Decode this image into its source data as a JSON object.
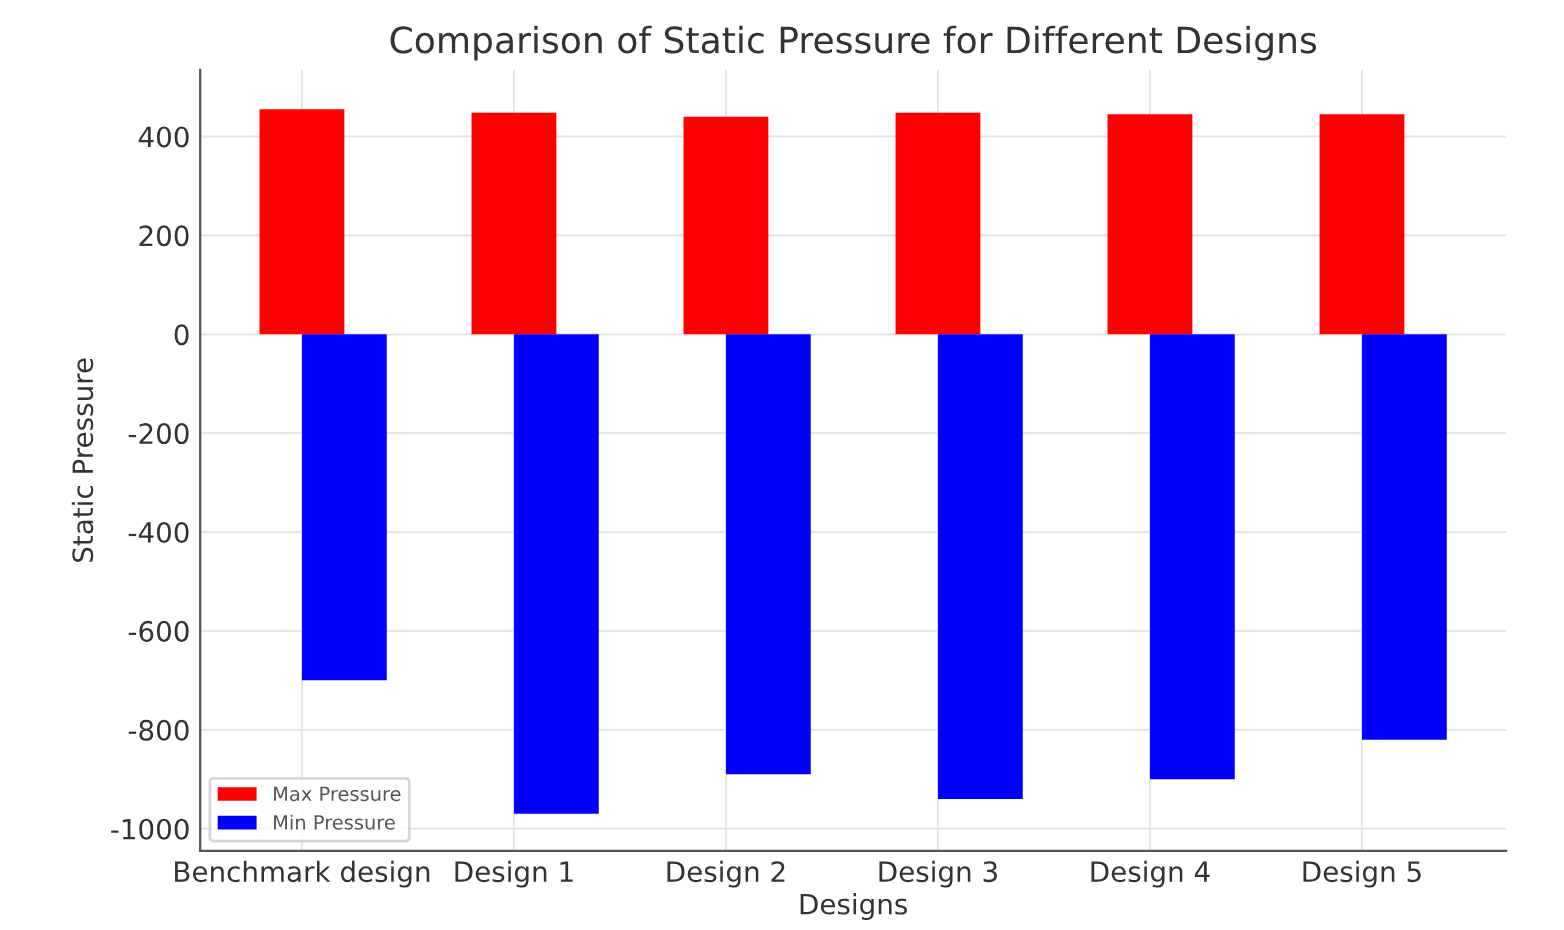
{
  "chart_data": {
    "type": "bar",
    "title": "Comparison of Static Pressure for Different Designs",
    "xlabel": "Designs",
    "ylabel": "Static Pressure",
    "categories": [
      "Benchmark design",
      "Design 1",
      "Design 2",
      "Design 3",
      "Design 4",
      "Design 5"
    ],
    "series": [
      {
        "name": "Max Pressure",
        "color": "#ff0000",
        "values": [
          455,
          448,
          440,
          448,
          445,
          445
        ]
      },
      {
        "name": "Min Pressure",
        "color": "#0000ff",
        "values": [
          -700,
          -970,
          -890,
          -940,
          -900,
          -820
        ]
      }
    ],
    "ylim": [
      -1045,
      535
    ],
    "yticks": [
      -1000,
      -800,
      -600,
      -400,
      -200,
      0,
      200,
      400
    ],
    "grid": true,
    "legend": "lower left"
  }
}
